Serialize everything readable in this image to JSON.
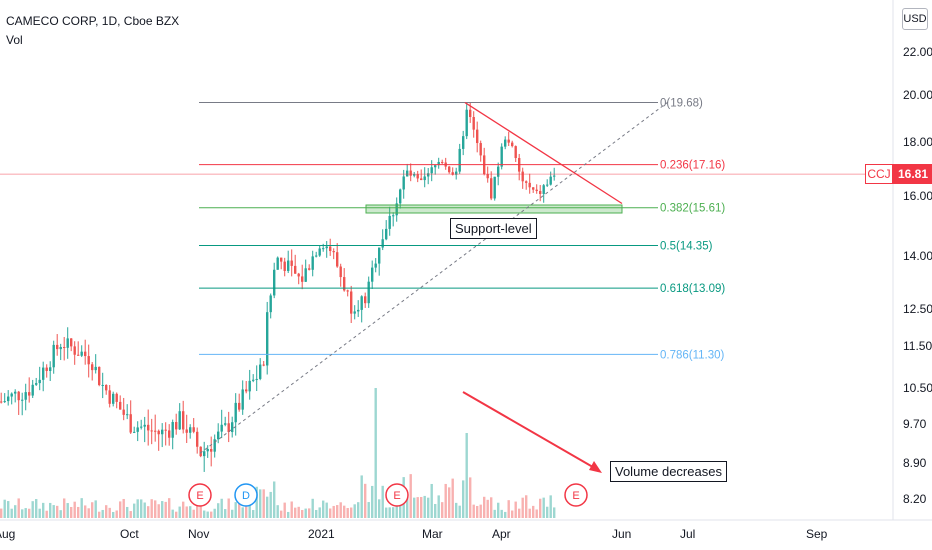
{
  "header": {
    "title": "CAMECO CORP, 1D, Cboe BZX",
    "indicator": "Vol"
  },
  "currency_button": "USD",
  "price_tag": {
    "symbol": "CCJ",
    "price": "16.81",
    "color": "#f23645"
  },
  "annotations": {
    "support": "Support-level",
    "volume": "Volume decreases"
  },
  "colors": {
    "up": "#26a69a",
    "down": "#ef5350",
    "trend": "#f23645"
  },
  "chart_data": {
    "type": "candlestick",
    "yaxis_ticks": [
      "22.00",
      "20.00",
      "18.00",
      "16.00",
      "14.00",
      "12.50",
      "11.50",
      "10.50",
      "9.70",
      "8.90",
      "8.20"
    ],
    "ylim": [
      8.0,
      24.0
    ],
    "xaxis_ticks": [
      "Aug",
      "Oct",
      "Nov",
      "2021",
      "Mar",
      "Apr",
      "Jun",
      "Jul",
      "Sep"
    ],
    "fib_levels": [
      {
        "label": "0(19.68)",
        "price": 19.68,
        "color": "#787b86"
      },
      {
        "label": "0.236(17.16)",
        "price": 17.16,
        "color": "#f23645"
      },
      {
        "label": "0.382(15.61)",
        "price": 15.61,
        "color": "#4caf50"
      },
      {
        "label": "0.5(14.35)",
        "price": 14.35,
        "color": "#089981"
      },
      {
        "label": "0.618(13.09)",
        "price": 13.09,
        "color": "#089981"
      },
      {
        "label": "0.786(11.30)",
        "price": 11.3,
        "color": "#64b5f6"
      }
    ],
    "events": [
      {
        "label": "E",
        "color": "#f23645"
      },
      {
        "label": "D",
        "color": "#2196f3"
      },
      {
        "label": "E",
        "color": "#f23645"
      },
      {
        "label": "E",
        "color": "#f23645"
      }
    ],
    "last_price": 16.81
  }
}
